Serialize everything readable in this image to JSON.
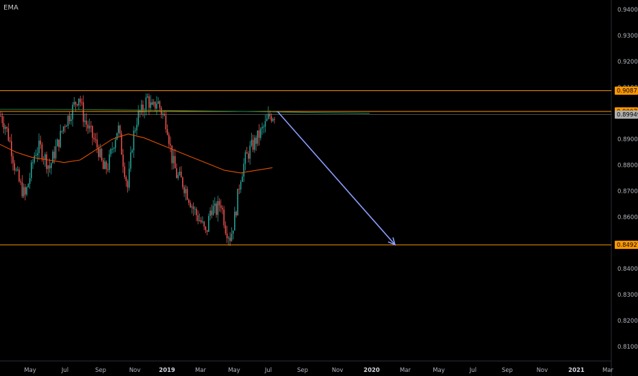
{
  "indicator_label": "EMA",
  "chart_data": {
    "type": "candlestick",
    "y_axis": {
      "ylim": [
        0.801,
        0.945
      ],
      "ticks": [
        "0.94000",
        "0.93000",
        "0.92000",
        "0.91000",
        "0.90000",
        "0.89000",
        "0.88000",
        "0.87000",
        "0.86000",
        "0.85000",
        "0.84000",
        "0.83000",
        "0.82000",
        "0.81000"
      ]
    },
    "x_axis": {
      "ticks": [
        "May",
        "Jul",
        "Sep",
        "Nov",
        "2019",
        "Mar",
        "May",
        "Jul",
        "Sep",
        "Nov",
        "2020",
        "Mar",
        "May",
        "Jul",
        "Sep",
        "Nov",
        "2021",
        "Mar"
      ],
      "bold_ticks": [
        "2019",
        "2020",
        "2021"
      ]
    },
    "horizontal_levels": [
      {
        "value": 0.90871,
        "label": "0.90871",
        "color": "#ff9800"
      },
      {
        "value": 0.90072,
        "label": "0.90072",
        "color": "#ff9800"
      },
      {
        "value": 0.84927,
        "label": "0.84927",
        "color": "#ff9800"
      }
    ],
    "current_price": {
      "value": 0.89949,
      "label": "0.89949"
    },
    "price_path": [
      [
        0.899,
        0.895,
        0.888,
        0.878,
        0.872,
        0.868,
        0.876,
        0.885,
        0.887,
        0.883
      ],
      [
        0.879,
        0.885,
        0.89,
        0.896,
        0.899,
        0.903,
        0.907,
        0.898,
        0.894,
        0.89
      ],
      [
        0.886,
        0.878,
        0.88,
        0.888,
        0.895,
        0.882,
        0.871,
        0.89,
        0.899,
        0.901
      ],
      [
        0.906,
        0.901,
        0.905,
        0.9,
        0.896,
        0.883,
        0.876,
        0.874,
        0.87,
        0.865
      ],
      [
        0.861,
        0.858,
        0.853,
        0.864,
        0.862,
        0.866,
        0.856,
        0.852,
        0.861,
        0.875
      ],
      [
        0.882,
        0.886,
        0.889,
        0.892,
        0.895,
        0.899,
        0.8995
      ]
    ],
    "ema_short": [
      0.888,
      0.885,
      0.883,
      0.882,
      0.881,
      0.882,
      0.886,
      0.89,
      0.892,
      0.8905,
      0.888,
      0.8855,
      0.883,
      0.8805,
      0.878,
      0.877,
      0.878,
      0.879
    ],
    "ema_long": [
      0.9015,
      0.9015,
      0.9014,
      0.9012,
      0.901,
      0.9008,
      0.9005,
      0.9002,
      0.9
    ],
    "projection": {
      "from": 0.9008,
      "to": 0.8493
    }
  }
}
